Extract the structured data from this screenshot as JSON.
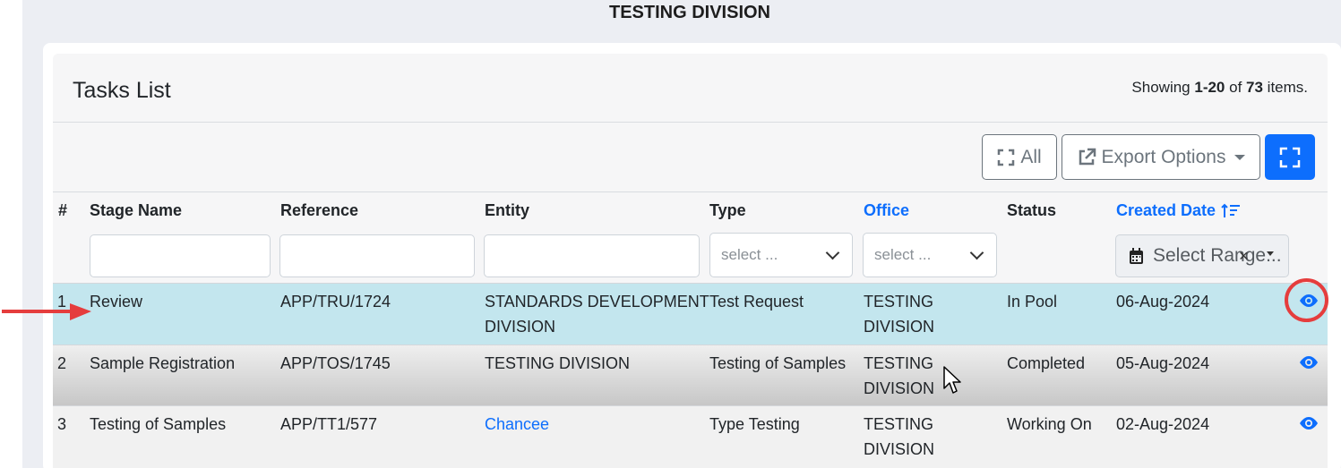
{
  "page": {
    "division_title": "TESTING DIVISION"
  },
  "card": {
    "title": "Tasks List",
    "showing_prefix": "Showing ",
    "showing_range": "1-20",
    "showing_mid": " of ",
    "showing_total": "73",
    "showing_suffix": " items."
  },
  "toolbar": {
    "all_label": "All",
    "export_label": "Export Options"
  },
  "table": {
    "headers": {
      "index": "#",
      "stage": "Stage Name",
      "reference": "Reference",
      "entity": "Entity",
      "type": "Type",
      "office": "Office",
      "status": "Status",
      "created": "Created Date"
    },
    "filters": {
      "type_placeholder": "select ...",
      "office_placeholder": "select ...",
      "date_placeholder": "Select Range...",
      "date_clear": "×"
    },
    "rows": [
      {
        "index": "1",
        "stage": "Review",
        "reference": "APP/TRU/1724",
        "entity_line1": "STANDARDS DEVELOPMENT",
        "entity_line2": "DIVISION",
        "type": "Test Request",
        "office_line1": "TESTING",
        "office_line2": "DIVISION",
        "status": "In Pool",
        "created": "06-Aug-2024"
      },
      {
        "index": "2",
        "stage": "Sample Registration",
        "reference": "APP/TOS/1745",
        "entity_line1": "TESTING DIVISION",
        "entity_line2": "",
        "type": "Testing of Samples",
        "office_line1": "TESTING",
        "office_line2": "DIVISION",
        "status": "Completed",
        "created": "05-Aug-2024"
      },
      {
        "index": "3",
        "stage": "Testing of Samples",
        "reference": "APP/TT1/577",
        "entity_line1": "Chancee",
        "entity_line2": "",
        "type": "Type Testing",
        "office_line1": "TESTING",
        "office_line2": "DIVISION",
        "status": "Working On",
        "created": "02-Aug-2024"
      }
    ]
  },
  "colors": {
    "primary": "#0d6efd",
    "selected_row": "#c3e6ee",
    "annotation_red": "#e53d3d"
  },
  "icons": {
    "all_button": "expand-corners-icon",
    "export_button": "external-link-icon",
    "fullscreen_button": "fullscreen-icon",
    "sort": "sort-ascending-icon",
    "calendar": "calendar-icon",
    "row_action": "eye-icon"
  }
}
